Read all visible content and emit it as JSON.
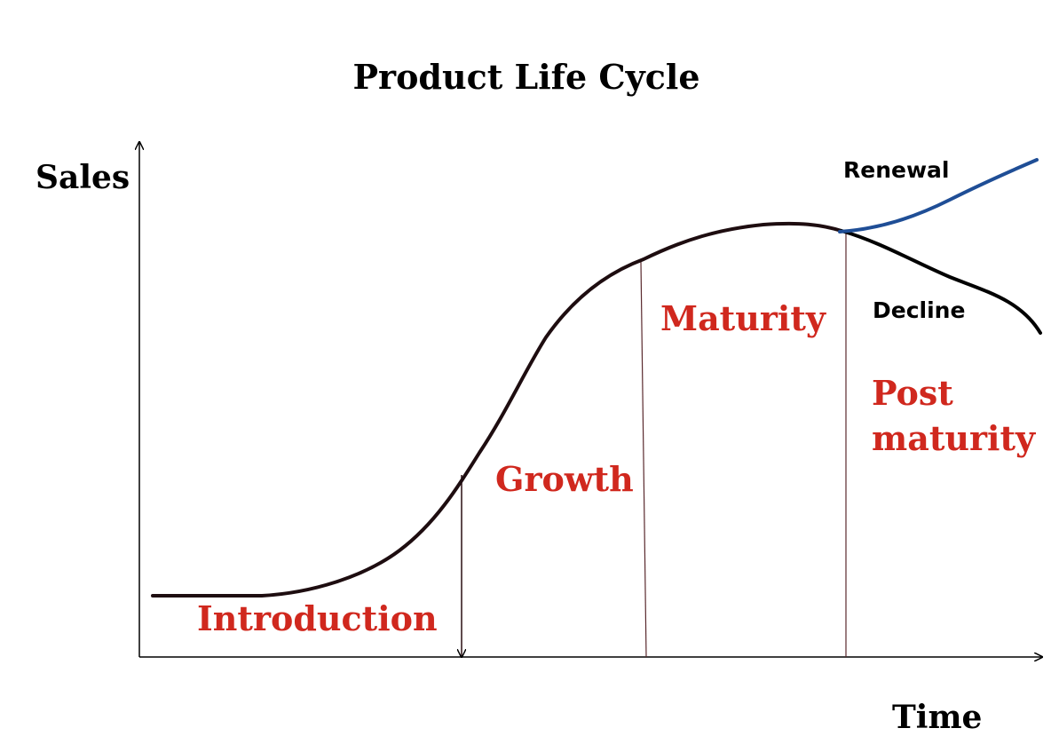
{
  "title": "Product Life Cycle",
  "axes": {
    "y_label": "Sales",
    "x_label": "Time"
  },
  "stages": {
    "introduction": "Introduction",
    "growth": "Growth",
    "maturity": "Maturity",
    "post_maturity_line1": "Post",
    "post_maturity_line2": "maturity"
  },
  "branches": {
    "renewal": "Renewal",
    "decline": "Decline"
  },
  "colors": {
    "stage_text": "#d0281e",
    "curve": "#1e0d10",
    "renewal": "#1f4e96",
    "axis": "#000000"
  }
}
